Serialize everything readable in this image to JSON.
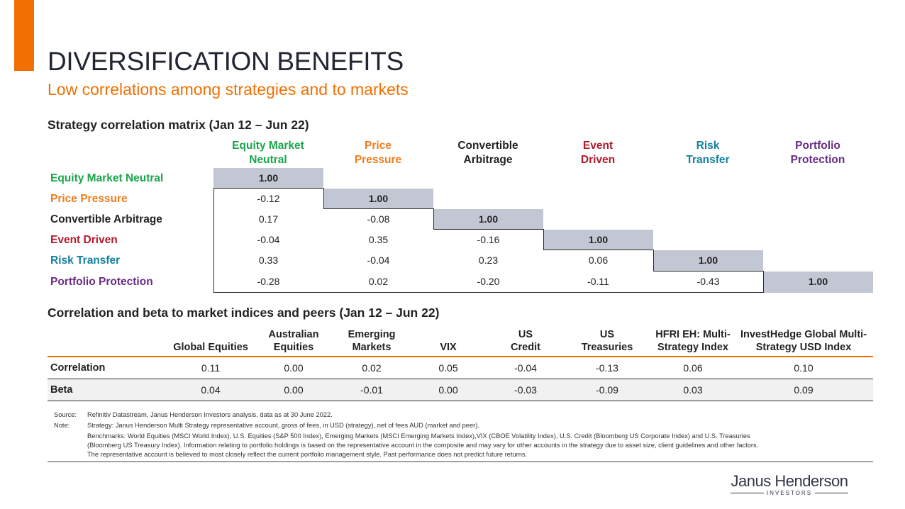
{
  "header": {
    "title": "DIVERSIFICATION BENEFITS",
    "subtitle": "Low correlations among strategies and to markets",
    "accent_color": "#f07003"
  },
  "matrix": {
    "title": "Strategy correlation matrix (Jan 12 – Jun 22)",
    "columns": [
      {
        "line1": "Equity Market",
        "line2": "Neutral",
        "color": "#1aa54b"
      },
      {
        "line1": "Price",
        "line2": "Pressure",
        "color": "#f07d1e"
      },
      {
        "line1": "Convertible",
        "line2": "Arbitrage",
        "color": "#222222"
      },
      {
        "line1": "Event",
        "line2": "Driven",
        "color": "#b5182c"
      },
      {
        "line1": "Risk",
        "line2": "Transfer",
        "color": "#14809e"
      },
      {
        "line1": "Portfolio",
        "line2": "Protection",
        "color": "#6a2c86"
      }
    ],
    "rows": [
      {
        "label": "Equity Market Neutral",
        "color": "#1aa54b",
        "values": [
          "1.00"
        ]
      },
      {
        "label": "Price Pressure",
        "color": "#f07d1e",
        "values": [
          "-0.12",
          "1.00"
        ]
      },
      {
        "label": "Convertible Arbitrage",
        "color": "#222222",
        "values": [
          "0.17",
          "-0.08",
          "1.00"
        ]
      },
      {
        "label": "Event Driven",
        "color": "#b5182c",
        "values": [
          "-0.04",
          "0.35",
          "-0.16",
          "1.00"
        ]
      },
      {
        "label": "Risk Transfer",
        "color": "#14809e",
        "values": [
          "0.33",
          "-0.04",
          "0.23",
          "0.06",
          "1.00"
        ]
      },
      {
        "label": "Portfolio  Protection",
        "color": "#6a2c86",
        "values": [
          "-0.28",
          "0.02",
          "-0.20",
          "-0.11",
          "-0.43",
          "1.00"
        ]
      }
    ],
    "diagonal_color": "#c3c7d4"
  },
  "market": {
    "title": "Correlation and beta to market indices and peers (Jan 12 – Jun 22)",
    "columns": [
      {
        "line1": "",
        "line2": "Global Equities"
      },
      {
        "line1": "Australian",
        "line2": "Equities"
      },
      {
        "line1": "Emerging",
        "line2": "Markets"
      },
      {
        "line1": "",
        "line2": "VIX"
      },
      {
        "line1": "US",
        "line2": "Credit"
      },
      {
        "line1": "US",
        "line2": "Treasuries"
      },
      {
        "line1": "HFRI EH: Multi-",
        "line2": "Strategy Index"
      },
      {
        "line1": "InvestHedge Global Multi-",
        "line2": "Strategy USD Index"
      }
    ],
    "rows": [
      {
        "label": "Correlation",
        "values": [
          "0.11",
          "0.00",
          "0.02",
          "0.05",
          "-0.04",
          "-0.13",
          "0.06",
          "0.10"
        ]
      },
      {
        "label": "Beta",
        "values": [
          "0.04",
          "0.00",
          "-0.01",
          "0.00",
          "-0.03",
          "-0.09",
          "0.03",
          "0.09"
        ]
      }
    ]
  },
  "footnotes": {
    "source_label": "Source:",
    "source_text": "Refinitiv Datastream, Janus Henderson Investors analysis, data as at 30 June 2022.",
    "note_label": "Note:",
    "note_lines": [
      "Strategy: Janus Henderson Multi Strategy representative account, gross of fees, in USD (strategy), net of fees AUD (market and peer).",
      "Benchmarks: World Equities (MSCI World Index), U.S. Equities (S&P 500 Index), Emerging Markets (MSCI Emerging Markets Index),VIX (CBOE Volatility Index), U.S. Credit (Bloomberg US Corporate Index) and U.S. Treasuries",
      "(Bloomberg US Treasury Index). Information relating to portfolio holdings is based on the representative account in the composite and may vary for other accounts in the strategy due to asset size, client guidelines and other factors.",
      "The representative account is believed to most closely reflect the current portfolio management style. Past performance does not predict future returns."
    ]
  },
  "logo": {
    "name": "Janus Henderson",
    "sub": "INVESTORS"
  }
}
